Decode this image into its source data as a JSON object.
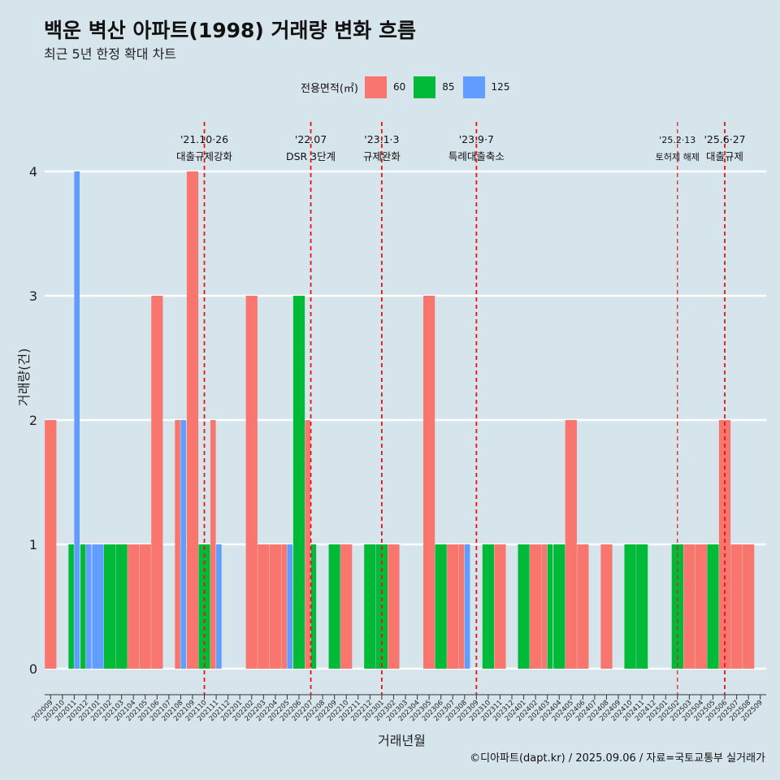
{
  "header": {
    "title": "백운 벽산 아파트(1998) 거래량 변화 흐름",
    "subtitle": "최근 5년 한정 확대 차트"
  },
  "legend": {
    "title": "전용면적(㎡)",
    "items": [
      {
        "label": "60",
        "color": "#f8766d"
      },
      {
        "label": "85",
        "color": "#00ba38"
      },
      {
        "label": "125",
        "color": "#619cff"
      }
    ]
  },
  "axes": {
    "xlabel": "거래년월",
    "ylabel": "거래량(건)"
  },
  "caption": "©디아파트(dapt.kr) / 2025.09.06 / 자료=국토교통부 실거래가",
  "chart_data": {
    "type": "bar",
    "categories": [
      "202009",
      "202010",
      "202011",
      "202012",
      "202101",
      "202102",
      "202103",
      "202104",
      "202105",
      "202106",
      "202107",
      "202108",
      "202109",
      "202110",
      "202111",
      "202112",
      "202201",
      "202202",
      "202203",
      "202204",
      "202205",
      "202206",
      "202207",
      "202208",
      "202209",
      "202210",
      "202211",
      "202212",
      "202301",
      "202302",
      "202303",
      "202304",
      "202305",
      "202306",
      "202307",
      "202308",
      "202309",
      "202310",
      "202311",
      "202312",
      "202401",
      "202402",
      "202403",
      "202404",
      "202405",
      "202406",
      "202407",
      "202408",
      "202409",
      "202410",
      "202411",
      "202412",
      "202501",
      "202502",
      "202503",
      "202504",
      "202505",
      "202506",
      "202507",
      "202508",
      "202509"
    ],
    "series": [
      {
        "name": "60",
        "color": "#f8766d",
        "values": [
          2,
          0,
          0,
          0,
          0,
          0,
          0,
          1,
          1,
          3,
          0,
          2,
          4,
          0,
          2,
          0,
          0,
          3,
          1,
          1,
          1,
          0,
          2,
          0,
          0,
          1,
          0,
          0,
          0,
          1,
          0,
          0,
          3,
          0,
          1,
          1,
          0,
          0,
          1,
          0,
          0,
          1,
          1,
          0,
          2,
          1,
          0,
          1,
          0,
          0,
          0,
          0,
          0,
          0,
          1,
          1,
          0,
          2,
          1,
          1,
          0
        ]
      },
      {
        "name": "85",
        "color": "#00ba38",
        "values": [
          0,
          0,
          1,
          1,
          0,
          1,
          1,
          0,
          0,
          0,
          0,
          0,
          0,
          1,
          0,
          0,
          0,
          0,
          0,
          0,
          0,
          3,
          1,
          0,
          1,
          0,
          0,
          1,
          1,
          0,
          0,
          0,
          0,
          1,
          0,
          0,
          0,
          1,
          0,
          0,
          1,
          0,
          1,
          1,
          0,
          0,
          0,
          0,
          0,
          1,
          1,
          0,
          0,
          1,
          0,
          0,
          1,
          0,
          0,
          0,
          0
        ]
      },
      {
        "name": "125",
        "color": "#619cff",
        "values": [
          0,
          0,
          4,
          1,
          1,
          0,
          0,
          0,
          0,
          0,
          0,
          2,
          0,
          0,
          1,
          0,
          0,
          0,
          0,
          0,
          1,
          0,
          0,
          0,
          0,
          0,
          0,
          0,
          0,
          0,
          0,
          0,
          0,
          0,
          0,
          1,
          0,
          0,
          0,
          0,
          0,
          0,
          0,
          0,
          0,
          0,
          0,
          0,
          0,
          0,
          0,
          0,
          0,
          0,
          0,
          0,
          0,
          0,
          0,
          0,
          0
        ]
      }
    ],
    "yticks": [
      0,
      1,
      2,
      3,
      4
    ],
    "ylim": [
      0,
      4
    ],
    "grid": "horizontal",
    "legend_position": "top",
    "annotations": [
      {
        "date": "202110",
        "line1": "'21.10·26",
        "line2": "대출규제강화",
        "small": false
      },
      {
        "date": "202207",
        "line1": "'22.07",
        "line2": "DSR 3단계",
        "small": false
      },
      {
        "date": "202301",
        "line1": "'23.1·3",
        "line2": "규제완화",
        "small": false
      },
      {
        "date": "202309",
        "line1": "'23.9·7",
        "line2": "특례대출축소",
        "small": false
      },
      {
        "date": "202502",
        "line1": "'25.2·13",
        "line2": "토허제 해제",
        "small": true
      },
      {
        "date": "202506",
        "line1": "'25.6·27",
        "line2": "대출규제",
        "small": false
      }
    ]
  }
}
